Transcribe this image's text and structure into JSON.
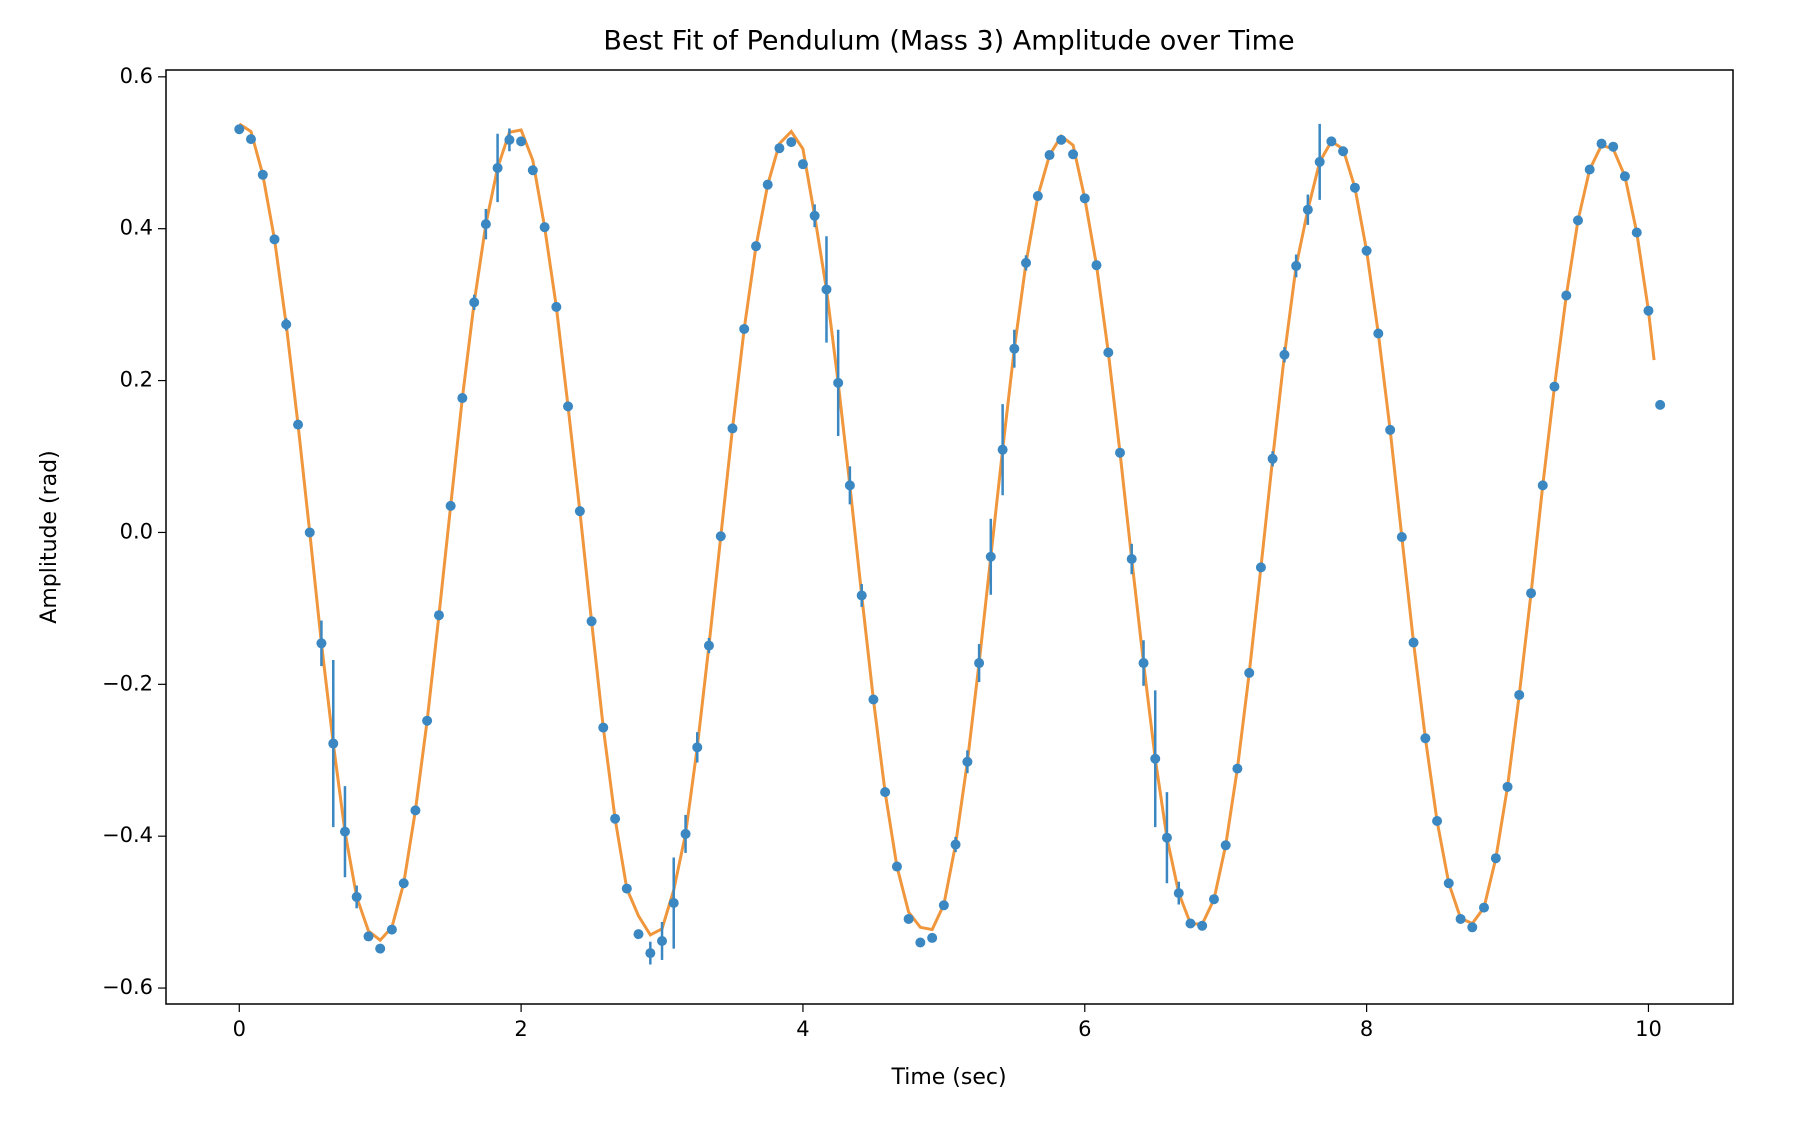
{
  "chart_data": {
    "type": "scatter",
    "title": "Best Fit of Pendulum (Mass 3) Amplitude over Time",
    "x_label": "Time (sec)",
    "y_label": "Amplitude (rad)",
    "xlim": [
      -0.52,
      10.6
    ],
    "ylim": [
      -0.621,
      0.609
    ],
    "xticks": [
      0,
      2,
      4,
      6,
      8,
      10
    ],
    "yticks": [
      {
        "value": -0.6,
        "label": "−0.6"
      },
      {
        "value": -0.4,
        "label": "−0.4"
      },
      {
        "value": -0.2,
        "label": "−0.2"
      },
      {
        "value": 0.0,
        "label": "0.0"
      },
      0.2,
      0.4,
      0.6
    ],
    "series": [
      {
        "type": "scatter",
        "color": "#3a87c2",
        "x": [
          0,
          0.083,
          0.167,
          0.25,
          0.333,
          0.417,
          0.5,
          0.583,
          0.667,
          0.75,
          0.833,
          0.917,
          1.0,
          1.083,
          1.167,
          1.25,
          1.333,
          1.417,
          1.5,
          1.583,
          1.667,
          1.75,
          1.833,
          1.917,
          2.0,
          2.083,
          2.167,
          2.25,
          2.333,
          2.417,
          2.5,
          2.583,
          2.667,
          2.75,
          2.833,
          2.917,
          3.0,
          3.083,
          3.167,
          3.25,
          3.333,
          3.417,
          3.5,
          3.583,
          3.667,
          3.75,
          3.833,
          3.917,
          4.0,
          4.083,
          4.167,
          4.25,
          4.333,
          4.417,
          4.5,
          4.583,
          4.667,
          4.75,
          4.833,
          4.917,
          5.0,
          5.083,
          5.167,
          5.25,
          5.333,
          5.417,
          5.5,
          5.583,
          5.667,
          5.75,
          5.833,
          5.917,
          6.0,
          6.083,
          6.167,
          6.25,
          6.333,
          6.417,
          6.5,
          6.583,
          6.667,
          6.75,
          6.833,
          6.917,
          7.0,
          7.083,
          7.167,
          7.25,
          7.333,
          7.417,
          7.5,
          7.583,
          7.667,
          7.75,
          7.833,
          7.917,
          8.0,
          8.083,
          8.167,
          8.25,
          8.333,
          8.417,
          8.5,
          8.583,
          8.667,
          8.75,
          8.833,
          8.917,
          9.0,
          9.083,
          9.167,
          9.25,
          9.333,
          9.417,
          9.5,
          9.583,
          9.667,
          9.75,
          9.833,
          9.917,
          10.0,
          10.083
        ],
        "values": [
          0.531,
          0.518,
          0.471,
          0.386,
          0.274,
          0.142,
          0.0,
          -0.146,
          -0.278,
          -0.394,
          -0.48,
          -0.532,
          -0.548,
          -0.523,
          -0.462,
          -0.366,
          -0.248,
          -0.109,
          0.035,
          0.177,
          0.303,
          0.406,
          0.48,
          0.517,
          0.515,
          0.477,
          0.402,
          0.297,
          0.166,
          0.028,
          -0.117,
          -0.257,
          -0.377,
          -0.469,
          -0.529,
          -0.554,
          -0.538,
          -0.488,
          -0.397,
          -0.283,
          -0.149,
          -0.005,
          0.137,
          0.268,
          0.377,
          0.458,
          0.506,
          0.514,
          0.485,
          0.417,
          0.32,
          0.197,
          0.062,
          -0.083,
          -0.22,
          -0.342,
          -0.44,
          -0.509,
          -0.54,
          -0.534,
          -0.491,
          -0.411,
          -0.302,
          -0.172,
          -0.032,
          0.109,
          0.242,
          0.355,
          0.443,
          0.497,
          0.517,
          0.498,
          0.44,
          0.352,
          0.237,
          0.105,
          -0.035,
          -0.172,
          -0.298,
          -0.402,
          -0.475,
          -0.515,
          -0.518,
          -0.483,
          -0.412,
          -0.311,
          -0.185,
          -0.046,
          0.097,
          0.234,
          0.351,
          0.425,
          0.488,
          0.515,
          0.502,
          0.454,
          0.371,
          0.262,
          0.135,
          -0.006,
          -0.145,
          -0.271,
          -0.38,
          -0.462,
          -0.509,
          -0.52,
          -0.494,
          -0.429,
          -0.335,
          -0.214,
          -0.08,
          0.062,
          0.192,
          0.312,
          0.411,
          0.478,
          0.512,
          0.508,
          0.469,
          0.395,
          0.292,
          0.168
        ],
        "errors": [
          0.005,
          0.005,
          0.005,
          0.005,
          0.008,
          0.005,
          0.005,
          0.03,
          0.11,
          0.06,
          0.015,
          0.005,
          0.005,
          0.005,
          0.005,
          0.005,
          0.005,
          0.005,
          0.005,
          0.005,
          0.01,
          0.02,
          0.045,
          0.015,
          0.005,
          0.005,
          0.005,
          0.005,
          0.005,
          0.005,
          0.005,
          0.005,
          0.005,
          0.005,
          0.005,
          0.015,
          0.025,
          0.06,
          0.025,
          0.02,
          0.01,
          0.005,
          0.005,
          0.005,
          0.005,
          0.005,
          0.005,
          0.005,
          0.005,
          0.015,
          0.07,
          0.07,
          0.025,
          0.015,
          0.005,
          0.005,
          0.005,
          0.005,
          0.005,
          0.005,
          0.005,
          0.01,
          0.015,
          0.025,
          0.05,
          0.06,
          0.025,
          0.01,
          0.005,
          0.005,
          0.005,
          0.005,
          0.005,
          0.005,
          0.005,
          0.005,
          0.02,
          0.03,
          0.09,
          0.06,
          0.015,
          0.005,
          0.005,
          0.005,
          0.005,
          0.005,
          0.005,
          0.005,
          0.01,
          0.01,
          0.015,
          0.02,
          0.05,
          0.005,
          0.005,
          0.005,
          0.005,
          0.005,
          0.005,
          0.005,
          0.005,
          0.005,
          0.005,
          0.005,
          0.005,
          0.005,
          0.005,
          0.005,
          0.005,
          0.005,
          0.005,
          0.005,
          0.005,
          0.005,
          0.005,
          0.005,
          0.005,
          0.005,
          0.005,
          0.005,
          0.005,
          0.005
        ]
      },
      {
        "type": "line",
        "color": "#f0963c",
        "x": [
          0,
          0.083,
          0.167,
          0.25,
          0.333,
          0.417,
          0.5,
          0.583,
          0.667,
          0.75,
          0.833,
          0.917,
          1.0,
          1.083,
          1.167,
          1.25,
          1.333,
          1.417,
          1.5,
          1.583,
          1.667,
          1.75,
          1.833,
          1.917,
          2.0,
          2.083,
          2.167,
          2.25,
          2.333,
          2.417,
          2.5,
          2.583,
          2.667,
          2.75,
          2.833,
          2.917,
          3.0,
          3.083,
          3.167,
          3.25,
          3.333,
          3.417,
          3.5,
          3.583,
          3.667,
          3.75,
          3.833,
          3.917,
          4.0,
          4.083,
          4.167,
          4.25,
          4.333,
          4.417,
          4.5,
          4.583,
          4.667,
          4.75,
          4.833,
          4.917,
          5.0,
          5.083,
          5.167,
          5.25,
          5.333,
          5.417,
          5.5,
          5.583,
          5.667,
          5.75,
          5.833,
          5.917,
          6.0,
          6.083,
          6.167,
          6.25,
          6.333,
          6.417,
          6.5,
          6.583,
          6.667,
          6.75,
          6.833,
          6.917,
          7.0,
          7.083,
          7.167,
          7.25,
          7.333,
          7.417,
          7.5,
          7.583,
          7.667,
          7.75,
          7.833,
          7.917,
          8.0,
          8.083,
          8.167,
          8.25,
          8.333,
          8.417,
          8.5,
          8.583,
          8.667,
          8.75,
          8.833,
          8.917,
          9.0,
          9.083,
          9.167,
          9.25,
          9.333,
          9.417,
          9.5,
          9.583,
          9.667,
          9.75,
          9.833,
          9.917,
          10.0,
          10.04
        ],
        "values": [
          0.538,
          0.528,
          0.471,
          0.386,
          0.274,
          0.142,
          0.0,
          -0.146,
          -0.278,
          -0.394,
          -0.48,
          -0.525,
          -0.537,
          -0.52,
          -0.462,
          -0.366,
          -0.248,
          -0.109,
          0.035,
          0.177,
          0.303,
          0.406,
          0.48,
          0.527,
          0.53,
          0.49,
          0.402,
          0.297,
          0.166,
          0.028,
          -0.117,
          -0.257,
          -0.377,
          -0.469,
          -0.505,
          -0.53,
          -0.522,
          -0.471,
          -0.397,
          -0.283,
          -0.149,
          -0.005,
          0.137,
          0.268,
          0.377,
          0.458,
          0.512,
          0.528,
          0.505,
          0.417,
          0.32,
          0.197,
          0.062,
          -0.083,
          -0.22,
          -0.342,
          -0.44,
          -0.5,
          -0.52,
          -0.523,
          -0.49,
          -0.411,
          -0.302,
          -0.172,
          -0.032,
          0.109,
          0.242,
          0.355,
          0.443,
          0.497,
          0.522,
          0.51,
          0.44,
          0.352,
          0.237,
          0.105,
          -0.035,
          -0.172,
          -0.298,
          -0.402,
          -0.475,
          -0.515,
          -0.516,
          -0.483,
          -0.412,
          -0.311,
          -0.185,
          -0.046,
          0.097,
          0.234,
          0.351,
          0.425,
          0.488,
          0.515,
          0.505,
          0.454,
          0.371,
          0.262,
          0.135,
          -0.006,
          -0.145,
          -0.271,
          -0.38,
          -0.462,
          -0.508,
          -0.515,
          -0.494,
          -0.429,
          -0.335,
          -0.214,
          -0.08,
          0.062,
          0.192,
          0.312,
          0.411,
          0.478,
          0.51,
          0.505,
          0.469,
          0.395,
          0.292,
          0.227
        ]
      }
    ]
  }
}
